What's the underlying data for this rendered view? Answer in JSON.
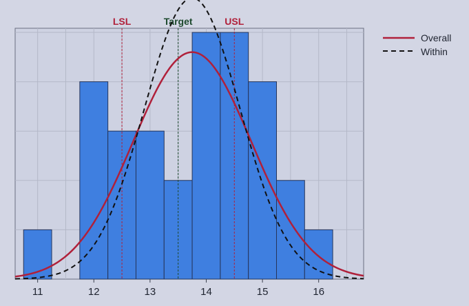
{
  "chart_data": {
    "type": "bar",
    "subtype": "histogram-capability",
    "x_ticks": [
      "11",
      "12",
      "13",
      "14",
      "15",
      "16"
    ],
    "x_tick_values": [
      11,
      12,
      13,
      14,
      15,
      16
    ],
    "xlim": [
      10.6,
      16.8
    ],
    "ylim": [
      0,
      5
    ],
    "grid": true,
    "bins": [
      {
        "start": 10.75,
        "end": 11.25,
        "count": 1
      },
      {
        "start": 11.25,
        "end": 11.75,
        "count": 0
      },
      {
        "start": 11.75,
        "end": 12.25,
        "count": 4
      },
      {
        "start": 12.25,
        "end": 12.75,
        "count": 3
      },
      {
        "start": 12.75,
        "end": 13.25,
        "count": 3
      },
      {
        "start": 13.25,
        "end": 13.75,
        "count": 2
      },
      {
        "start": 13.75,
        "end": 14.25,
        "count": 5
      },
      {
        "start": 14.25,
        "end": 14.75,
        "count": 5
      },
      {
        "start": 14.75,
        "end": 15.25,
        "count": 4
      },
      {
        "start": 15.25,
        "end": 15.75,
        "count": 2
      },
      {
        "start": 15.75,
        "end": 16.25,
        "count": 1
      }
    ],
    "reference_lines": [
      {
        "label": "LSL",
        "value": 12.5,
        "color": "#b0203a"
      },
      {
        "label": "Target",
        "value": 13.5,
        "color": "#1e4a2e"
      },
      {
        "label": "USL",
        "value": 14.5,
        "color": "#b0203a"
      }
    ],
    "series": [
      {
        "name": "Overall",
        "type": "normal-curve",
        "mean": 13.75,
        "sd": 1.05,
        "peak": 4.6,
        "color": "#b0203a",
        "style": "solid"
      },
      {
        "name": "Within",
        "type": "normal-curve",
        "mean": 13.75,
        "sd": 0.85,
        "peak": 5.7,
        "color": "#111111",
        "style": "dashed"
      }
    ],
    "legend_position": "top-right",
    "colors": {
      "bar_fill": "#3f7fe0",
      "bar_stroke": "#26355a",
      "plot_bg": "#ced2e2",
      "grid": "#b4b8c8",
      "axis": "#3a3f4d"
    }
  }
}
